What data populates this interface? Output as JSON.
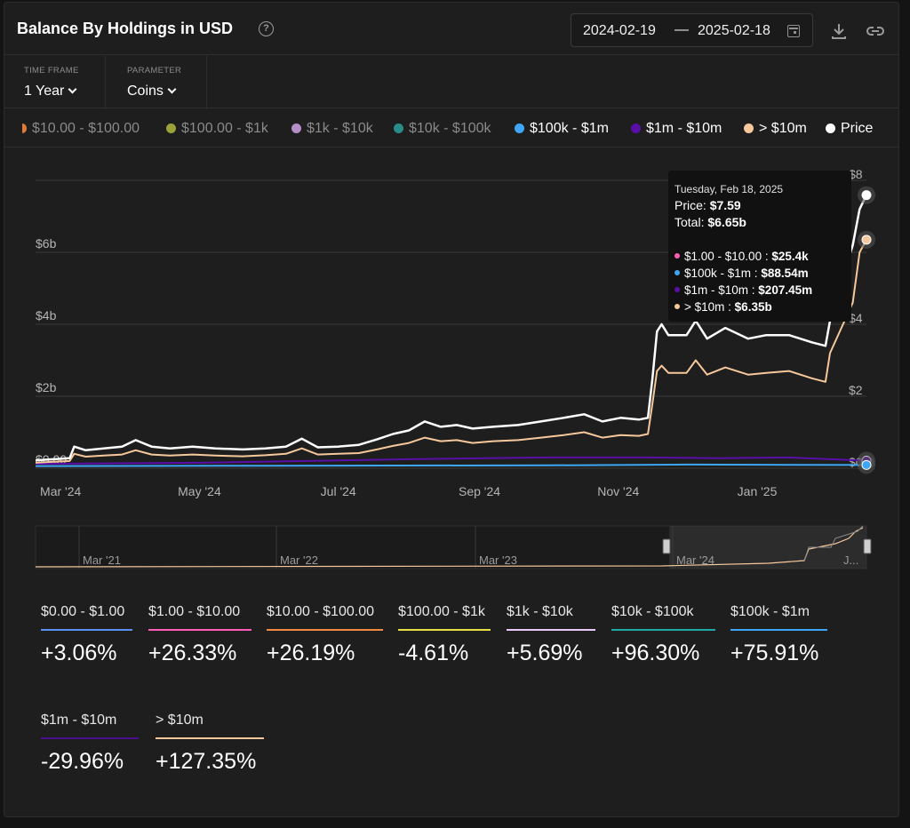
{
  "header": {
    "title": "Balance By Holdings in USD",
    "help_glyph": "?",
    "date_start": "2024-02-19",
    "date_separator": "—",
    "date_end": "2025-02-18"
  },
  "controls": [
    {
      "label": "TIME FRAME",
      "value": "1 Year"
    },
    {
      "label": "PARAMETER",
      "value": "Coins"
    }
  ],
  "legend": [
    {
      "label": "$10.00 - $100.00",
      "color": "#e07b39",
      "active": false,
      "partial": true
    },
    {
      "label": "$100.00 - $1k",
      "color": "#9aa33a",
      "active": false
    },
    {
      "label": "$1k - $10k",
      "color": "#b48fc7",
      "active": false
    },
    {
      "label": "$10k - $100k",
      "color": "#2a8c8a",
      "active": false
    },
    {
      "label": "$100k - $1m",
      "color": "#3ea6f5",
      "active": true
    },
    {
      "label": "$1m - $10m",
      "color": "#5a0ea8",
      "active": true
    },
    {
      "label": "> $10m",
      "color": "#f6c89b",
      "active": true
    },
    {
      "label": "Price",
      "color": "#ffffff",
      "active": true
    }
  ],
  "chart_data": {
    "type": "line",
    "y_left_ticks": [
      "$0.00",
      "$2b",
      "$4b",
      "$6b"
    ],
    "y_right_ticks": [
      "$0",
      "$2",
      "$4",
      "$8"
    ],
    "ylim_left": [
      0,
      8
    ],
    "ylim_right": [
      0,
      8
    ],
    "x_ticks": [
      "Mar '24",
      "May '24",
      "Jul '24",
      "Sep '24",
      "Nov '24",
      "Jan '25"
    ],
    "x_range": [
      "2024-02-19",
      "2025-02-18"
    ],
    "grid": true,
    "series": [
      {
        "name": "Price",
        "axis": "right",
        "color": "#ffffff",
        "points": [
          [
            "2024-02-19",
            0.22
          ],
          [
            "2024-02-27",
            0.25
          ],
          [
            "2024-03-05",
            0.28
          ],
          [
            "2024-03-07",
            0.6
          ],
          [
            "2024-03-12",
            0.5
          ],
          [
            "2024-03-20",
            0.55
          ],
          [
            "2024-03-28",
            0.6
          ],
          [
            "2024-04-03",
            0.78
          ],
          [
            "2024-04-10",
            0.6
          ],
          [
            "2024-04-18",
            0.55
          ],
          [
            "2024-04-28",
            0.6
          ],
          [
            "2024-05-08",
            0.55
          ],
          [
            "2024-05-20",
            0.52
          ],
          [
            "2024-05-30",
            0.55
          ],
          [
            "2024-06-08",
            0.6
          ],
          [
            "2024-06-15",
            0.82
          ],
          [
            "2024-06-22",
            0.58
          ],
          [
            "2024-07-01",
            0.6
          ],
          [
            "2024-07-10",
            0.65
          ],
          [
            "2024-07-18",
            0.8
          ],
          [
            "2024-07-25",
            0.95
          ],
          [
            "2024-08-01",
            1.05
          ],
          [
            "2024-08-08",
            1.3
          ],
          [
            "2024-08-15",
            1.15
          ],
          [
            "2024-08-22",
            1.2
          ],
          [
            "2024-08-29",
            1.1
          ],
          [
            "2024-09-07",
            1.15
          ],
          [
            "2024-09-18",
            1.2
          ],
          [
            "2024-09-28",
            1.3
          ],
          [
            "2024-10-08",
            1.4
          ],
          [
            "2024-10-17",
            1.5
          ],
          [
            "2024-10-25",
            1.3
          ],
          [
            "2024-11-02",
            1.4
          ],
          [
            "2024-11-10",
            1.35
          ],
          [
            "2024-11-14",
            1.4
          ],
          [
            "2024-11-16",
            2.5
          ],
          [
            "2024-11-18",
            3.8
          ],
          [
            "2024-11-20",
            4.0
          ],
          [
            "2024-11-23",
            3.7
          ],
          [
            "2024-12-01",
            3.7
          ],
          [
            "2024-12-05",
            4.1
          ],
          [
            "2024-12-10",
            3.6
          ],
          [
            "2024-12-18",
            3.9
          ],
          [
            "2024-12-28",
            3.6
          ],
          [
            "2025-01-05",
            3.7
          ],
          [
            "2025-01-15",
            3.7
          ],
          [
            "2025-01-25",
            3.5
          ],
          [
            "2025-01-31",
            3.4
          ],
          [
            "2025-02-02",
            4.1
          ],
          [
            "2025-02-07",
            5.2
          ],
          [
            "2025-02-12",
            6.2
          ],
          [
            "2025-02-15",
            7.2
          ],
          [
            "2025-02-18",
            7.59
          ]
        ]
      },
      {
        "name": "> $10m",
        "axis": "left",
        "color": "#f6c89b",
        "points": [
          [
            "2024-02-19",
            0.15
          ],
          [
            "2024-02-27",
            0.18
          ],
          [
            "2024-03-05",
            0.2
          ],
          [
            "2024-03-07",
            0.4
          ],
          [
            "2024-03-12",
            0.32
          ],
          [
            "2024-03-20",
            0.35
          ],
          [
            "2024-03-28",
            0.38
          ],
          [
            "2024-04-03",
            0.5
          ],
          [
            "2024-04-10",
            0.38
          ],
          [
            "2024-04-18",
            0.35
          ],
          [
            "2024-04-28",
            0.38
          ],
          [
            "2024-05-08",
            0.35
          ],
          [
            "2024-05-20",
            0.33
          ],
          [
            "2024-05-30",
            0.36
          ],
          [
            "2024-06-08",
            0.4
          ],
          [
            "2024-06-15",
            0.55
          ],
          [
            "2024-06-22",
            0.38
          ],
          [
            "2024-07-01",
            0.4
          ],
          [
            "2024-07-10",
            0.42
          ],
          [
            "2024-07-18",
            0.52
          ],
          [
            "2024-07-25",
            0.62
          ],
          [
            "2024-08-01",
            0.7
          ],
          [
            "2024-08-08",
            0.85
          ],
          [
            "2024-08-15",
            0.75
          ],
          [
            "2024-08-22",
            0.78
          ],
          [
            "2024-08-29",
            0.7
          ],
          [
            "2024-09-07",
            0.75
          ],
          [
            "2024-09-18",
            0.78
          ],
          [
            "2024-09-28",
            0.85
          ],
          [
            "2024-10-08",
            0.92
          ],
          [
            "2024-10-17",
            1.0
          ],
          [
            "2024-10-25",
            0.85
          ],
          [
            "2024-11-02",
            0.92
          ],
          [
            "2024-11-10",
            0.9
          ],
          [
            "2024-11-14",
            0.95
          ],
          [
            "2024-11-16",
            1.8
          ],
          [
            "2024-11-18",
            2.7
          ],
          [
            "2024-11-20",
            2.85
          ],
          [
            "2024-11-23",
            2.65
          ],
          [
            "2024-12-01",
            2.65
          ],
          [
            "2024-12-05",
            3.0
          ],
          [
            "2024-12-10",
            2.6
          ],
          [
            "2024-12-18",
            2.8
          ],
          [
            "2024-12-28",
            2.6
          ],
          [
            "2025-01-05",
            2.65
          ],
          [
            "2025-01-15",
            2.7
          ],
          [
            "2025-01-25",
            2.5
          ],
          [
            "2025-01-31",
            2.4
          ],
          [
            "2025-02-02",
            3.2
          ],
          [
            "2025-02-07",
            3.9
          ],
          [
            "2025-02-12",
            4.6
          ],
          [
            "2025-02-15",
            6.0
          ],
          [
            "2025-02-18",
            6.35
          ]
        ]
      },
      {
        "name": "$1m - $10m",
        "axis": "left",
        "color": "#5a0ea8",
        "points": [
          [
            "2024-02-19",
            0.12
          ],
          [
            "2024-05-01",
            0.15
          ],
          [
            "2024-08-01",
            0.25
          ],
          [
            "2024-10-01",
            0.3
          ],
          [
            "2024-11-15",
            0.3
          ],
          [
            "2024-12-15",
            0.28
          ],
          [
            "2025-01-15",
            0.3
          ],
          [
            "2025-02-18",
            0.21
          ]
        ]
      },
      {
        "name": "$100k - $1m",
        "axis": "left",
        "color": "#3ea6f5",
        "points": [
          [
            "2024-02-19",
            0.06
          ],
          [
            "2024-06-01",
            0.07
          ],
          [
            "2024-10-01",
            0.08
          ],
          [
            "2024-12-01",
            0.1
          ],
          [
            "2025-02-18",
            0.09
          ]
        ]
      }
    ],
    "navigator": {
      "labels": [
        "Mar '21",
        "Mar '22",
        "Mar '23",
        "Mar '24",
        "J..."
      ]
    },
    "tooltip": {
      "date": "Tuesday, Feb 18, 2025",
      "price_label": "Price:",
      "price_value": "$7.59",
      "total_label": "Total:",
      "total_value": "$6.65b",
      "rows": [
        {
          "label": "$1.00 - $10.00 :",
          "value": "$25.4k",
          "color": "#ff5cb8"
        },
        {
          "label": "$100k - $1m :",
          "value": "$88.54m",
          "color": "#3ea6f5"
        },
        {
          "label": "$1m - $10m :",
          "value": "$207.45m",
          "color": "#5a0ea8"
        },
        {
          "label": "> $10m :",
          "value": "$6.35b",
          "color": "#f6c89b"
        }
      ]
    }
  },
  "stats": [
    {
      "label": "$0.00 - $1.00",
      "change": "+3.06%",
      "color": "#5b8ff0"
    },
    {
      "label": "$1.00 - $10.00",
      "change": "+26.33%",
      "color": "#ff5cb8"
    },
    {
      "label": "$10.00 - $100.00",
      "change": "+26.19%",
      "color": "#f08a3c"
    },
    {
      "label": "$100.00 - $1k",
      "change": "-4.61%",
      "color": "#e6e142"
    },
    {
      "label": "$1k - $10k",
      "change": "+5.69%",
      "color": "#e9c9f5"
    },
    {
      "label": "$10k - $100k",
      "change": "+96.30%",
      "color": "#1fa9a6"
    },
    {
      "label": "$100k - $1m",
      "change": "+75.91%",
      "color": "#3ea6f5"
    },
    {
      "label": "$1m - $10m",
      "change": "-29.96%",
      "color": "#4a0f8c"
    },
    {
      "label": "> $10m",
      "change": "+127.35%",
      "color": "#f6c89b"
    }
  ]
}
